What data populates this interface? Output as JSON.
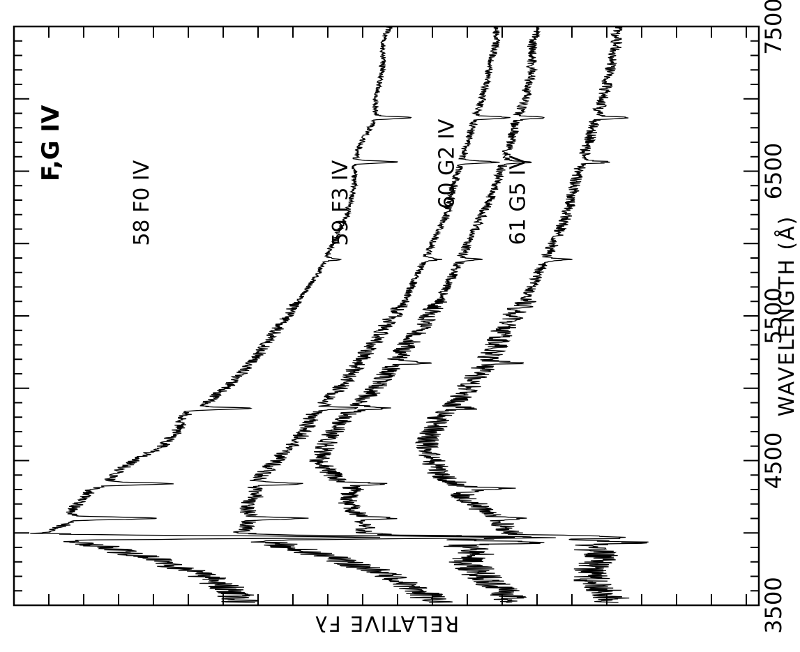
{
  "chart_data": {
    "type": "line",
    "title": "F,G IV",
    "xlabel": "WAVELENGTH (Å)",
    "ylabel": "RELATIVE Fλ",
    "xlim": [
      3500,
      7500
    ],
    "x_ticks": [
      "3500",
      "4500",
      "5500",
      "6500",
      "7500"
    ],
    "grid": false,
    "orientation": "rotated 90° (wavelength runs bottom to top)",
    "series": [
      {
        "name": "58 F0 IV",
        "color": "#000000",
        "x": [
          3500,
          3600,
          3700,
          3800,
          3850,
          3900,
          3950,
          4000,
          4050,
          4100,
          4150,
          4200,
          4250,
          4300,
          4350,
          4400,
          4500,
          4600,
          4700,
          4800,
          4861,
          4900,
          5000,
          5200,
          5400,
          5600,
          5800,
          6000,
          6200,
          6400,
          6563,
          6700,
          6870,
          7000,
          7200,
          7400,
          7500
        ],
        "y": [
          0.71,
          0.72,
          0.76,
          0.82,
          0.86,
          0.9,
          0.95,
          0.99,
          0.96,
          0.94,
          0.95,
          0.94,
          0.93,
          0.92,
          0.9,
          0.89,
          0.86,
          0.82,
          0.8,
          0.79,
          0.78,
          0.76,
          0.73,
          0.69,
          0.66,
          0.63,
          0.6,
          0.58,
          0.56,
          0.55,
          0.55,
          0.54,
          0.52,
          0.52,
          0.51,
          0.51,
          0.5
        ],
        "absorption_lines": [
          {
            "x": 3970,
            "depth": 0.45
          },
          {
            "x": 4101,
            "depth": 0.12
          },
          {
            "x": 4340,
            "depth": 0.1
          },
          {
            "x": 4861,
            "depth": 0.08
          },
          {
            "x": 5890,
            "depth": 0.02
          },
          {
            "x": 6563,
            "depth": 0.06
          },
          {
            "x": 6870,
            "depth": 0.05
          }
        ]
      },
      {
        "name": "59 F3 IV",
        "color": "#000000",
        "x": [
          3500,
          3600,
          3700,
          3800,
          3850,
          3900,
          3950,
          4000,
          4050,
          4100,
          4150,
          4200,
          4250,
          4300,
          4350,
          4400,
          4500,
          4600,
          4700,
          4800,
          4861,
          4900,
          5000,
          5200,
          5400,
          5600,
          5800,
          6000,
          6200,
          6400,
          6563,
          6700,
          6870,
          7000,
          7200,
          7400,
          7500
        ],
        "y": [
          0.43,
          0.46,
          0.5,
          0.56,
          0.6,
          0.64,
          0.68,
          0.71,
          0.7,
          0.7,
          0.7,
          0.7,
          0.69,
          0.69,
          0.69,
          0.68,
          0.66,
          0.64,
          0.62,
          0.61,
          0.6,
          0.59,
          0.57,
          0.54,
          0.51,
          0.48,
          0.46,
          0.44,
          0.42,
          0.41,
          0.4,
          0.39,
          0.38,
          0.37,
          0.36,
          0.35,
          0.35
        ],
        "absorption_lines": [
          {
            "x": 3970,
            "depth": 0.35
          },
          {
            "x": 4101,
            "depth": 0.08
          },
          {
            "x": 4340,
            "depth": 0.07
          },
          {
            "x": 4861,
            "depth": 0.06
          },
          {
            "x": 5890,
            "depth": 0.02
          },
          {
            "x": 6563,
            "depth": 0.05
          },
          {
            "x": 6870,
            "depth": 0.05
          }
        ]
      },
      {
        "name": "60 G2 IV",
        "color": "#000000",
        "x": [
          3500,
          3600,
          3700,
          3800,
          3850,
          3900,
          3950,
          4000,
          4050,
          4100,
          4150,
          4200,
          4250,
          4300,
          4350,
          4400,
          4500,
          4600,
          4700,
          4800,
          4861,
          4900,
          5000,
          5200,
          5400,
          5600,
          5800,
          6000,
          6200,
          6400,
          6563,
          6700,
          6870,
          7000,
          7200,
          7400,
          7500
        ],
        "y": [
          0.33,
          0.34,
          0.37,
          0.39,
          0.38,
          0.39,
          0.45,
          0.54,
          0.53,
          0.54,
          0.55,
          0.56,
          0.56,
          0.55,
          0.57,
          0.58,
          0.6,
          0.59,
          0.58,
          0.56,
          0.55,
          0.54,
          0.52,
          0.49,
          0.46,
          0.43,
          0.41,
          0.39,
          0.37,
          0.35,
          0.34,
          0.33,
          0.32,
          0.31,
          0.3,
          0.3,
          0.29
        ],
        "absorption_lines": [
          {
            "x": 3935,
            "depth": 0.16
          },
          {
            "x": 3970,
            "depth": 0.2
          },
          {
            "x": 4101,
            "depth": 0.05
          },
          {
            "x": 4340,
            "depth": 0.06
          },
          {
            "x": 4861,
            "depth": 0.05
          },
          {
            "x": 5175,
            "depth": 0.05
          },
          {
            "x": 5890,
            "depth": 0.03
          },
          {
            "x": 6563,
            "depth": 0.04
          },
          {
            "x": 6870,
            "depth": 0.04
          }
        ]
      },
      {
        "name": "61 G5 IV",
        "color": "#000000",
        "x": [
          3500,
          3600,
          3700,
          3800,
          3850,
          3900,
          3950,
          4000,
          4050,
          4100,
          4150,
          4200,
          4250,
          4300,
          4350,
          4400,
          4500,
          4600,
          4700,
          4800,
          4861,
          4900,
          5000,
          5200,
          5400,
          5600,
          5800,
          6000,
          6200,
          6400,
          6563,
          6700,
          6870,
          7000,
          7200,
          7400,
          7500
        ],
        "y": [
          0.18,
          0.2,
          0.22,
          0.21,
          0.2,
          0.22,
          0.26,
          0.33,
          0.34,
          0.35,
          0.37,
          0.38,
          0.4,
          0.39,
          0.41,
          0.43,
          0.44,
          0.45,
          0.44,
          0.43,
          0.42,
          0.41,
          0.39,
          0.36,
          0.34,
          0.31,
          0.29,
          0.27,
          0.25,
          0.24,
          0.23,
          0.22,
          0.21,
          0.2,
          0.19,
          0.18,
          0.18
        ],
        "absorption_lines": [
          {
            "x": 3935,
            "depth": 0.1
          },
          {
            "x": 3970,
            "depth": 0.12
          },
          {
            "x": 4101,
            "depth": 0.04
          },
          {
            "x": 4307,
            "depth": 0.06
          },
          {
            "x": 4861,
            "depth": 0.04
          },
          {
            "x": 5175,
            "depth": 0.05
          },
          {
            "x": 5890,
            "depth": 0.03
          },
          {
            "x": 6563,
            "depth": 0.04
          },
          {
            "x": 6870,
            "depth": 0.04
          }
        ]
      }
    ]
  }
}
